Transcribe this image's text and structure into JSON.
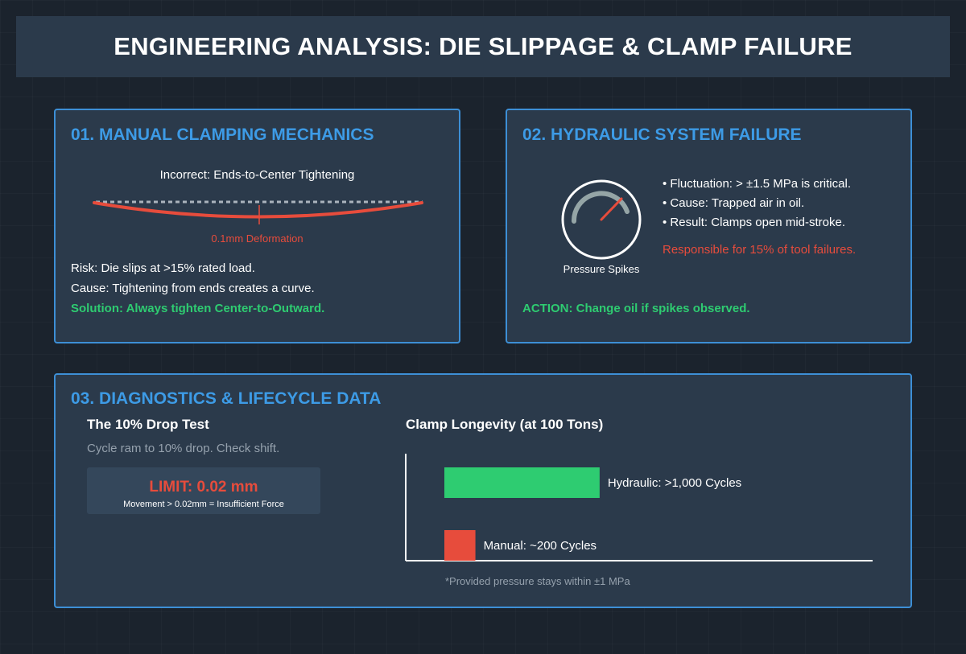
{
  "header": {
    "title": "ENGINEERING ANALYSIS: DIE SLIPPAGE & CLAMP FAILURE"
  },
  "panel1": {
    "title": "01. MANUAL CLAMPING MECHANICS",
    "diagram_caption": "Incorrect: Ends-to-Center Tightening",
    "deformation_label": "0.1mm Deformation",
    "risk": "Risk: Die slips at >15% rated load.",
    "cause": "Cause: Tightening from ends creates a curve.",
    "solution": "Solution: Always tighten Center-to-Outward."
  },
  "panel2": {
    "title": "02. HYDRAULIC SYSTEM FAILURE",
    "gauge_label": "Pressure Spikes",
    "bullets": [
      "• Fluctuation: > ±1.5 MPa is critical.",
      "• Cause: Trapped air in oil.",
      "• Result: Clamps open mid-stroke."
    ],
    "stat": "Responsible for 15% of tool failures.",
    "action": "ACTION: Change oil if spikes observed."
  },
  "panel3": {
    "title": "03. DIAGNOSTICS & LIFECYCLE DATA",
    "drop_test": {
      "heading": "The 10% Drop Test",
      "description": "Cycle ram to 10% drop. Check shift.",
      "limit": "LIMIT: 0.02 mm",
      "limit_note": "Movement > 0.02mm = Insufficient Force"
    },
    "footnote": "*Provided pressure stays within ±1 MPa"
  },
  "colors": {
    "accent": "#3d9be6",
    "danger": "#e74c3c",
    "success": "#2ecc71",
    "panel": "#2b3a4b"
  },
  "chart_data": {
    "type": "bar",
    "orientation": "horizontal",
    "title": "Clamp Longevity (at 100 Tons)",
    "categories": [
      "Hydraulic",
      "Manual"
    ],
    "values": [
      1000,
      200
    ],
    "data_labels": [
      "Hydraulic: >1,000 Cycles",
      "Manual: ~200 Cycles"
    ],
    "colors": [
      "#2ecc71",
      "#e74c3c"
    ],
    "xlim": [
      0,
      2800
    ],
    "grid": false,
    "legend": "none"
  }
}
